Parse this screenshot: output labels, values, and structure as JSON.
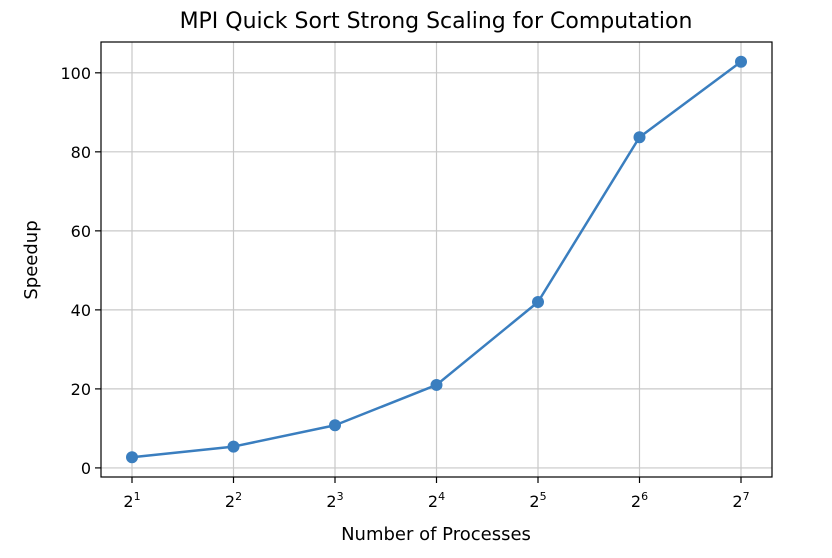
{
  "chart_data": {
    "type": "line",
    "title": "MPI Quick Sort Strong Scaling for Computation",
    "xlabel": "Number of Processes",
    "ylabel": "Speedup",
    "x_scale": "log2",
    "x": [
      2,
      4,
      8,
      16,
      32,
      64,
      128
    ],
    "x_tick_labels": [
      {
        "base": "2",
        "exp": "1"
      },
      {
        "base": "2",
        "exp": "2"
      },
      {
        "base": "2",
        "exp": "3"
      },
      {
        "base": "2",
        "exp": "4"
      },
      {
        "base": "2",
        "exp": "5"
      },
      {
        "base": "2",
        "exp": "6"
      },
      {
        "base": "2",
        "exp": "7"
      }
    ],
    "series": [
      {
        "values": [
          2.7,
          5.4,
          10.8,
          21.0,
          42.0,
          83.7,
          102.8
        ],
        "color": "#3a7ebf",
        "marker": "circle"
      }
    ],
    "y_ticks": [
      "0",
      "20",
      "40",
      "60",
      "80",
      "100"
    ],
    "y_tick_values": [
      0,
      20,
      40,
      60,
      80,
      100
    ],
    "ylim": [
      -2.3,
      107.8
    ],
    "grid": true
  }
}
